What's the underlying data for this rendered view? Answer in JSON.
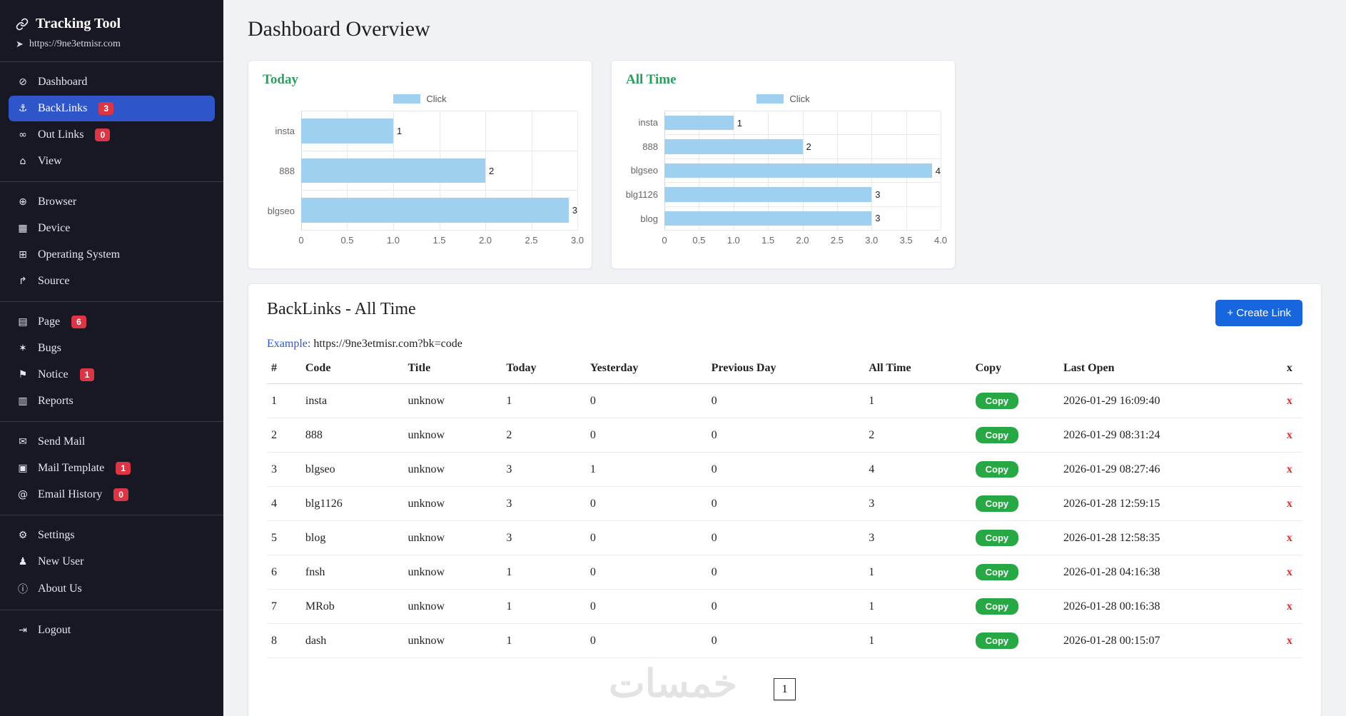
{
  "app": {
    "title": "Tracking Tool",
    "url": "https://9ne3etmisr.com"
  },
  "header": {
    "title": "Dashboard Overview"
  },
  "sidebar": {
    "groups": [
      {
        "items": [
          {
            "id": "dashboard",
            "label": "Dashboard",
            "icon": "dashboard-icon"
          },
          {
            "id": "backlinks",
            "label": "BackLinks",
            "icon": "anchor-icon",
            "badge": "3",
            "active": true
          },
          {
            "id": "outlinks",
            "label": "Out Links",
            "icon": "outlinks-icon",
            "badge": "0"
          },
          {
            "id": "view",
            "label": "View",
            "icon": "view-icon"
          }
        ]
      },
      {
        "items": [
          {
            "id": "browser",
            "label": "Browser",
            "icon": "browser-icon"
          },
          {
            "id": "device",
            "label": "Device",
            "icon": "device-icon"
          },
          {
            "id": "operating-system",
            "label": "Operating System",
            "icon": "os-icon"
          },
          {
            "id": "source",
            "label": "Source",
            "icon": "source-icon"
          }
        ]
      },
      {
        "items": [
          {
            "id": "page",
            "label": "Page",
            "icon": "page-icon",
            "badge": "6"
          },
          {
            "id": "bugs",
            "label": "Bugs",
            "icon": "bugs-icon"
          },
          {
            "id": "notice",
            "label": "Notice",
            "icon": "notice-icon",
            "badge": "1"
          },
          {
            "id": "reports",
            "label": "Reports",
            "icon": "reports-icon"
          }
        ]
      },
      {
        "items": [
          {
            "id": "send-mail",
            "label": "Send Mail",
            "icon": "send-mail-icon"
          },
          {
            "id": "mail-template",
            "label": "Mail Template",
            "icon": "mail-template-icon",
            "badge": "1"
          },
          {
            "id": "email-history",
            "label": "Email History",
            "icon": "email-history-icon",
            "badge": "0"
          }
        ]
      },
      {
        "items": [
          {
            "id": "settings",
            "label": "Settings",
            "icon": "settings-icon"
          },
          {
            "id": "new-user",
            "label": "New User",
            "icon": "new-user-icon"
          },
          {
            "id": "about-us",
            "label": "About Us",
            "icon": "about-us-icon"
          }
        ]
      },
      {
        "items": [
          {
            "id": "logout",
            "label": "Logout",
            "icon": "logout-icon"
          }
        ]
      }
    ]
  },
  "chart_data": [
    {
      "type": "bar",
      "orientation": "horizontal",
      "title": "Today",
      "legend": [
        "Click"
      ],
      "categories": [
        "insta",
        "888",
        "blgseo"
      ],
      "values": [
        1,
        2,
        3
      ],
      "xlim": [
        0,
        3.0
      ],
      "xtick_labels": [
        "0",
        "0.5",
        "1.0",
        "1.5",
        "2.0",
        "2.5",
        "3.0"
      ],
      "bar_color": "#9fd0f0",
      "grid": true,
      "legend_position": "top"
    },
    {
      "type": "bar",
      "orientation": "horizontal",
      "title": "All Time",
      "legend": [
        "Click"
      ],
      "categories": [
        "insta",
        "888",
        "blgseo",
        "blg1126",
        "blog"
      ],
      "values": [
        1,
        2,
        4,
        3,
        3
      ],
      "xlim": [
        0,
        4.0
      ],
      "xtick_labels": [
        "0",
        "0.5",
        "1.0",
        "1.5",
        "2.0",
        "2.5",
        "3.0",
        "3.5",
        "4.0"
      ],
      "bar_color": "#9fd0f0",
      "grid": true,
      "legend_position": "top"
    }
  ],
  "backlinks": {
    "title": "BackLinks - All Time",
    "create_button": "+ Create Link",
    "example_label": "Example:",
    "example_url": "https://9ne3etmisr.com?bk=code",
    "columns": [
      "#",
      "Code",
      "Title",
      "Today",
      "Yesterday",
      "Previous Day",
      "All Time",
      "Copy",
      "Last Open",
      "x"
    ],
    "copy_label": "Copy",
    "delete_label": "x",
    "rows": [
      {
        "num": "1",
        "code": "insta",
        "title": "unknow",
        "today": "1",
        "yesterday": "0",
        "previous_day": "0",
        "all_time": "1",
        "last_open": "2026-01-29 16:09:40"
      },
      {
        "num": "2",
        "code": "888",
        "title": "unknow",
        "today": "2",
        "yesterday": "0",
        "previous_day": "0",
        "all_time": "2",
        "last_open": "2026-01-29 08:31:24"
      },
      {
        "num": "3",
        "code": "blgseo",
        "title": "unknow",
        "today": "3",
        "yesterday": "1",
        "previous_day": "0",
        "all_time": "4",
        "last_open": "2026-01-29 08:27:46"
      },
      {
        "num": "4",
        "code": "blg1126",
        "title": "unknow",
        "today": "3",
        "yesterday": "0",
        "previous_day": "0",
        "all_time": "3",
        "last_open": "2026-01-28 12:59:15"
      },
      {
        "num": "5",
        "code": "blog",
        "title": "unknow",
        "today": "3",
        "yesterday": "0",
        "previous_day": "0",
        "all_time": "3",
        "last_open": "2026-01-28 12:58:35"
      },
      {
        "num": "6",
        "code": "fnsh",
        "title": "unknow",
        "today": "1",
        "yesterday": "0",
        "previous_day": "0",
        "all_time": "1",
        "last_open": "2026-01-28 04:16:38"
      },
      {
        "num": "7",
        "code": "MRob",
        "title": "unknow",
        "today": "1",
        "yesterday": "0",
        "previous_day": "0",
        "all_time": "1",
        "last_open": "2026-01-28 00:16:38"
      },
      {
        "num": "8",
        "code": "dash",
        "title": "unknow",
        "today": "1",
        "yesterday": "0",
        "previous_day": "0",
        "all_time": "1",
        "last_open": "2026-01-28 00:15:07"
      }
    ],
    "pagination": [
      "1"
    ]
  },
  "watermark": "خمسات",
  "colors": {
    "sidebar_bg": "#181824",
    "active_item": "#2f55cb",
    "badge_red": "#dc3545",
    "chart_heading_green": "#2e9e5e",
    "bar_blue": "#9fd0f0",
    "create_button_blue": "#1766dd",
    "copy_button_green": "#28a745",
    "delete_red": "#e03131"
  }
}
